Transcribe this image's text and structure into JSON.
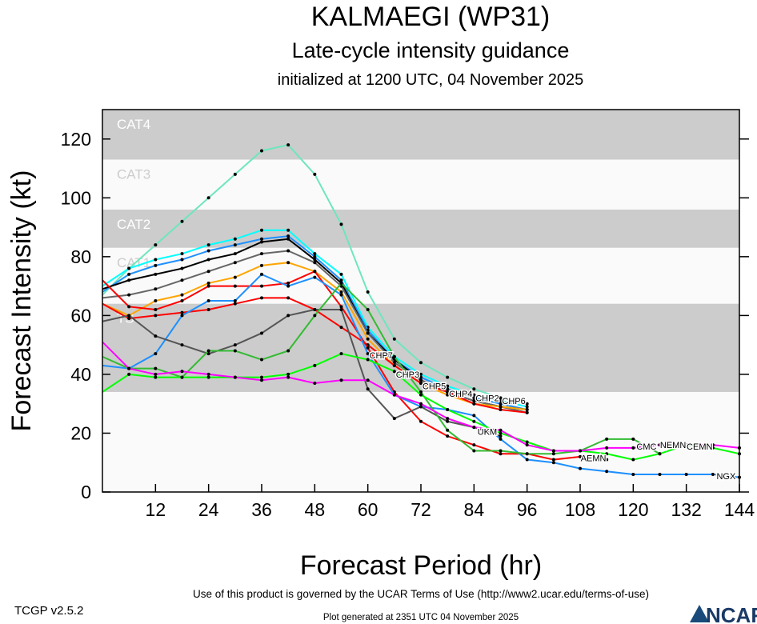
{
  "title": "KALMAEGI (WP31)",
  "subtitle": "Late-cycle intensity guidance",
  "init_line": "initialized at 1200 UTC, 04 November 2025",
  "footer": {
    "version": "TCGP v2.5.2",
    "terms": "Use of this product is governed by the UCAR Terms of Use (http://www2.ucar.edu/terms-of-use)",
    "generated": "Plot generated at 2351 UTC   04 November 2025",
    "logo": "NCAR"
  },
  "chart_data": {
    "type": "line",
    "xlabel": "Forecast Period (hr)",
    "ylabel": "Forecast Intensity (kt)",
    "xlim": [
      0,
      144
    ],
    "ylim": [
      0,
      130
    ],
    "xticks": [
      "12",
      "24",
      "36",
      "48",
      "60",
      "72",
      "84",
      "96",
      "108",
      "120",
      "132",
      "144"
    ],
    "yticks": [
      "0",
      "20",
      "40",
      "60",
      "80",
      "100",
      "120"
    ],
    "bands": [
      {
        "label": "CAT4",
        "from": 113,
        "to": 130,
        "color": "#cccccc"
      },
      {
        "label": "CAT3",
        "from": 96,
        "to": 113,
        "color": "#fafafa"
      },
      {
        "label": "CAT2",
        "from": 83,
        "to": 96,
        "color": "#cccccc"
      },
      {
        "label": "CAT1",
        "from": 64,
        "to": 83,
        "color": "#fafafa"
      },
      {
        "label": "TS",
        "from": 34,
        "to": 64,
        "color": "#cccccc"
      },
      {
        "label": "",
        "from": 0,
        "to": 34,
        "color": "#fafafa"
      }
    ],
    "series": [
      {
        "name": "CHP6",
        "color": "#6ee6bc",
        "x0": 0,
        "values": [
          67,
          76,
          84,
          92,
          100,
          108,
          116,
          118,
          108,
          91,
          68,
          52,
          44,
          39,
          35,
          32,
          30
        ]
      },
      {
        "name": "CHP2",
        "color": "#00ffff",
        "x0": 0,
        "values": [
          70,
          76,
          79,
          81,
          84,
          86,
          89,
          89,
          81,
          74,
          56,
          46,
          40,
          36,
          33,
          31,
          29
        ]
      },
      {
        "name": "CHP4",
        "color": "#1e90ff",
        "x0": 0,
        "values": [
          68,
          74,
          77,
          79,
          82,
          84,
          86,
          87,
          80,
          72,
          55,
          45,
          39,
          35,
          32,
          30,
          28
        ]
      },
      {
        "name": "",
        "color": "#000000",
        "x0": 0,
        "values": [
          69,
          72,
          74,
          76,
          79,
          81,
          85,
          86,
          79,
          71,
          54,
          45,
          38,
          34,
          31,
          29,
          28
        ]
      },
      {
        "name": "CHP5",
        "color": "#666666",
        "x0": 0,
        "values": [
          66,
          67,
          69,
          72,
          75,
          78,
          81,
          82,
          78,
          70,
          54,
          44,
          38,
          34,
          31,
          29,
          27
        ]
      },
      {
        "name": "CHP3",
        "color": "#ffa500",
        "x0": 0,
        "values": [
          64,
          60,
          65,
          67,
          71,
          73,
          77,
          78,
          75,
          68,
          52,
          43,
          37,
          33,
          30,
          29,
          28
        ]
      },
      {
        "name": "CHP7",
        "color": "#ff0000",
        "x0": 0,
        "values": [
          64,
          59,
          60,
          61,
          62,
          64,
          66,
          66,
          62,
          56,
          50,
          43,
          37,
          34,
          30,
          28,
          27
        ]
      },
      {
        "name": "AEMN",
        "color": "#ff0000",
        "x0": 0,
        "values": [
          72,
          63,
          62,
          65,
          70,
          70,
          70,
          71,
          75,
          63,
          49,
          34,
          24,
          19,
          16,
          13,
          13,
          11,
          12,
          11
        ]
      },
      {
        "name": "NGX",
        "color": "#1e90ff",
        "x0": 0,
        "values": [
          43,
          42,
          47,
          60,
          65,
          65,
          74,
          70,
          73,
          67,
          47,
          33,
          29,
          28,
          26,
          18,
          11,
          10,
          8,
          7,
          6,
          6,
          6,
          6,
          5
        ]
      },
      {
        "name": "UKM",
        "color": "#555555",
        "x0": 0,
        "values": [
          58,
          60,
          53,
          50,
          47,
          50,
          54,
          60,
          62,
          62,
          35,
          25,
          29,
          24,
          22,
          19
        ]
      },
      {
        "name": "CMC",
        "color": "#33bb33",
        "x0": 0,
        "values": [
          46,
          42,
          42,
          39,
          48,
          48,
          45,
          48,
          60,
          71,
          62,
          46,
          34,
          21,
          14,
          14,
          13,
          13,
          14,
          18,
          18,
          13
        ]
      },
      {
        "name": "CEMN",
        "color": "#00ff00",
        "x0": 0,
        "values": [
          34,
          40,
          39,
          39,
          39,
          39,
          39,
          40,
          43,
          47,
          45,
          41,
          33,
          28,
          24,
          20,
          17,
          14,
          14,
          13,
          11,
          13,
          16,
          15,
          13
        ]
      },
      {
        "name": "NEMN",
        "color": "#ff00ff",
        "x0": 0,
        "values": [
          51,
          42,
          40,
          41,
          40,
          39,
          38,
          39,
          37,
          38,
          38,
          33,
          30,
          25,
          22,
          21,
          16,
          14,
          14,
          15,
          15,
          16,
          16,
          16,
          15
        ]
      }
    ]
  }
}
